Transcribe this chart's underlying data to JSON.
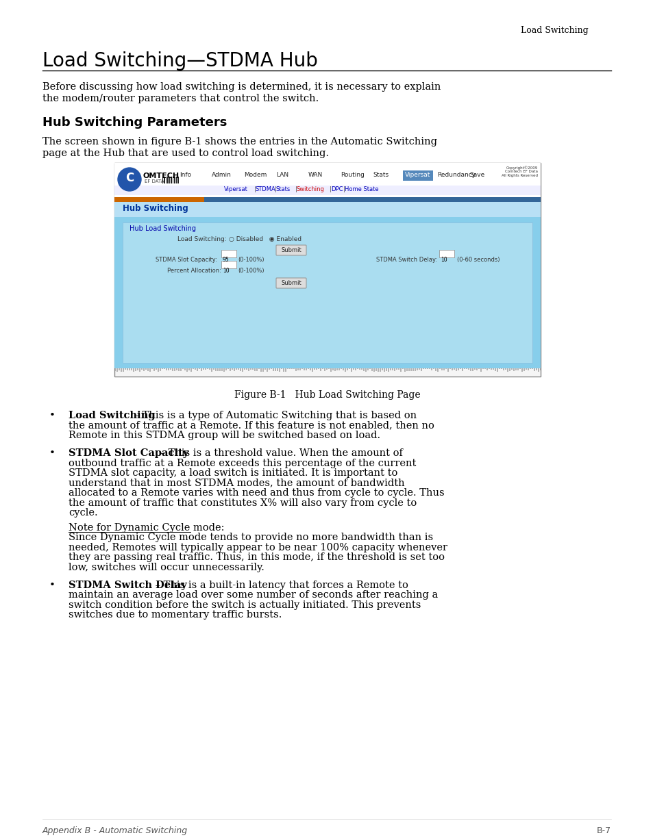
{
  "page_bg": "#ffffff",
  "header_text": "Load Switching",
  "title": "Load Switching—STDMA Hub",
  "section_title": "Hub Switching Parameters",
  "figure_caption": "Figure B-1   Hub Load Switching Page",
  "footer_left": "Appendix B - Automatic Switching",
  "footer_right": "B-7",
  "text_color": "#000000",
  "divider_color": "#000000",
  "orange_bar_color": "#CC6600",
  "blue_bar_color": "#336699",
  "nav_items": [
    "Info",
    "Admin",
    "Modem",
    "LAN",
    "WAN",
    "Routing",
    "Stats",
    "Vipersat",
    "Redundancy",
    "Save"
  ],
  "sub_nav_items": [
    "Vipersat",
    "STDMA",
    "Stats",
    "Switching",
    "DPC",
    "Home State"
  ]
}
